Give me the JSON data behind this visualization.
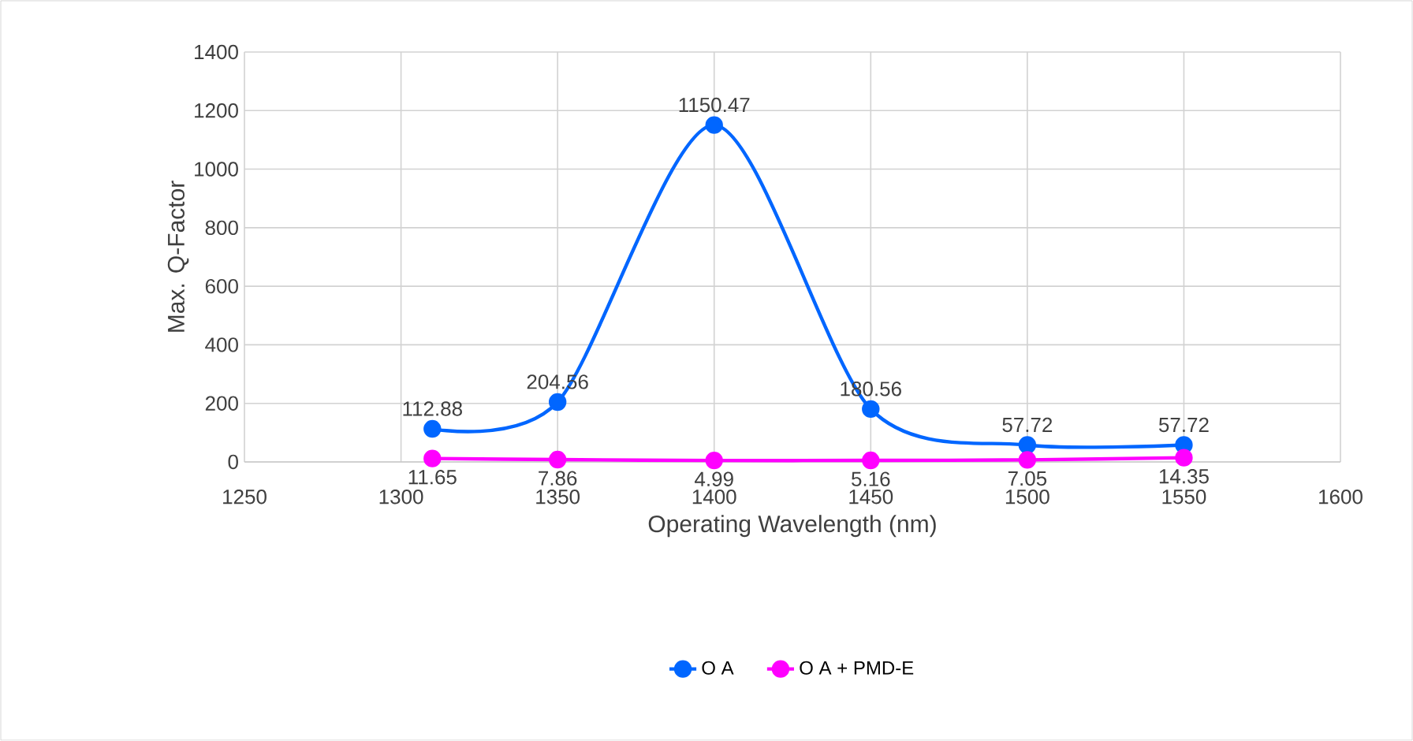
{
  "chart_data": {
    "type": "line",
    "xlabel": "Operating Wavelength (nm)",
    "ylabel": "Max. Q-Factor",
    "x": [
      1310,
      1350,
      1400,
      1450,
      1500,
      1550
    ],
    "series": [
      {
        "name": "O A",
        "color": "#0066ff",
        "values": [
          112.88,
          204.56,
          1150.47,
          180.56,
          57.72,
          57.72
        ]
      },
      {
        "name": "O A + PMD-E",
        "color": "#ff00ff",
        "values": [
          11.65,
          7.86,
          4.99,
          5.16,
          7.05,
          14.35
        ]
      }
    ],
    "xlim": [
      1250,
      1600
    ],
    "xticks": [
      1250,
      1300,
      1350,
      1400,
      1450,
      1500,
      1550,
      1600
    ],
    "ylim": [
      0,
      1400
    ],
    "yticks": [
      0,
      200,
      400,
      600,
      800,
      1000,
      1200,
      1400
    ],
    "grid": true,
    "legend": "bottom",
    "marker": "circle",
    "line_style": "solid",
    "data_labels": true
  }
}
